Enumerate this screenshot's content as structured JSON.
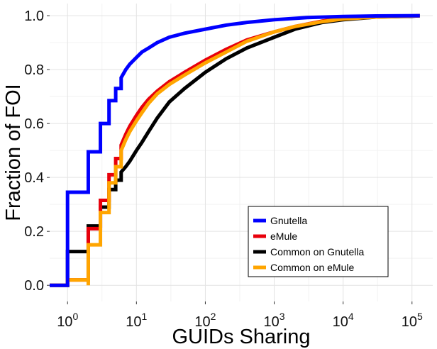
{
  "chart_data": {
    "type": "line",
    "title": "",
    "xlabel": "GUIDs Sharing",
    "ylabel": "Fraction of FOI",
    "x_scale": "log10",
    "xlim": [
      0.55,
      200000
    ],
    "ylim": [
      -0.06,
      1.045
    ],
    "grid": true,
    "legend_position": "bottom-right",
    "x_ticks": [
      {
        "value": 1,
        "base": "10",
        "exp": "0"
      },
      {
        "value": 10,
        "base": "10",
        "exp": "1"
      },
      {
        "value": 100,
        "base": "10",
        "exp": "2"
      },
      {
        "value": 1000,
        "base": "10",
        "exp": "3"
      },
      {
        "value": 10000,
        "base": "10",
        "exp": "4"
      },
      {
        "value": 100000,
        "base": "10",
        "exp": "5"
      }
    ],
    "y_ticks": [
      {
        "value": 0.0,
        "label": "0.0"
      },
      {
        "value": 0.2,
        "label": "0.2"
      },
      {
        "value": 0.4,
        "label": "0.4"
      },
      {
        "value": 0.6,
        "label": "0.6"
      },
      {
        "value": 0.8,
        "label": "0.8"
      },
      {
        "value": 1.0,
        "label": "1.0"
      }
    ],
    "series": [
      {
        "name": "Common on Gnutella",
        "color": "#000000",
        "steps": [
          [
            0.55,
            0.0
          ],
          [
            1,
            0.0
          ],
          [
            1,
            0.125
          ],
          [
            2,
            0.125
          ],
          [
            2,
            0.22
          ],
          [
            3,
            0.22
          ],
          [
            3,
            0.29
          ],
          [
            4,
            0.29
          ],
          [
            4,
            0.355
          ],
          [
            5,
            0.355
          ],
          [
            5,
            0.39
          ],
          [
            6,
            0.39
          ],
          [
            6,
            0.42
          ]
        ],
        "curve": [
          [
            6,
            0.42
          ],
          [
            7,
            0.44
          ],
          [
            8,
            0.46
          ],
          [
            10,
            0.5
          ],
          [
            12,
            0.53
          ],
          [
            15,
            0.57
          ],
          [
            20,
            0.62
          ],
          [
            30,
            0.68
          ],
          [
            50,
            0.73
          ],
          [
            100,
            0.79
          ],
          [
            200,
            0.84
          ],
          [
            400,
            0.88
          ],
          [
            1000,
            0.92
          ],
          [
            2000,
            0.95
          ],
          [
            5000,
            0.975
          ],
          [
            10000,
            0.985
          ],
          [
            30000,
            0.995
          ],
          [
            100000,
            0.998
          ],
          [
            130000,
            1.0
          ]
        ]
      },
      {
        "name": "eMule",
        "color": "#e8000b",
        "steps": [
          [
            0.55,
            0.0
          ],
          [
            1,
            0.0
          ],
          [
            1,
            0.02
          ],
          [
            2,
            0.02
          ],
          [
            2,
            0.21
          ],
          [
            3,
            0.21
          ],
          [
            3,
            0.315
          ],
          [
            4,
            0.315
          ],
          [
            4,
            0.41
          ],
          [
            5,
            0.41
          ],
          [
            5,
            0.47
          ],
          [
            6,
            0.47
          ],
          [
            6,
            0.52
          ]
        ],
        "curve": [
          [
            6,
            0.52
          ],
          [
            7,
            0.56
          ],
          [
            8,
            0.59
          ],
          [
            10,
            0.63
          ],
          [
            12,
            0.66
          ],
          [
            15,
            0.69
          ],
          [
            20,
            0.72
          ],
          [
            30,
            0.755
          ],
          [
            50,
            0.79
          ],
          [
            100,
            0.835
          ],
          [
            200,
            0.875
          ],
          [
            400,
            0.91
          ],
          [
            1000,
            0.94
          ],
          [
            2000,
            0.96
          ],
          [
            5000,
            0.98
          ],
          [
            10000,
            0.99
          ],
          [
            30000,
            0.996
          ],
          [
            100000,
            0.999
          ],
          [
            130000,
            1.0
          ]
        ]
      },
      {
        "name": "Common on eMule",
        "color": "#ffa500",
        "steps": [
          [
            0.55,
            0.0
          ],
          [
            1,
            0.0
          ],
          [
            1,
            0.02
          ],
          [
            2,
            0.02
          ],
          [
            2,
            0.0
          ],
          [
            2,
            0.02
          ],
          [
            2,
            0.15
          ],
          [
            3,
            0.15
          ],
          [
            3,
            0.27
          ],
          [
            4,
            0.27
          ],
          [
            4,
            0.38
          ],
          [
            5,
            0.38
          ],
          [
            5,
            0.44
          ],
          [
            6,
            0.44
          ],
          [
            6,
            0.5
          ]
        ],
        "curve": [
          [
            6,
            0.5
          ],
          [
            7,
            0.54
          ],
          [
            8,
            0.57
          ],
          [
            10,
            0.61
          ],
          [
            12,
            0.64
          ],
          [
            15,
            0.675
          ],
          [
            20,
            0.71
          ],
          [
            30,
            0.745
          ],
          [
            50,
            0.78
          ],
          [
            100,
            0.825
          ],
          [
            200,
            0.865
          ],
          [
            400,
            0.905
          ],
          [
            1000,
            0.94
          ],
          [
            2000,
            0.96
          ],
          [
            5000,
            0.978
          ],
          [
            10000,
            0.988
          ],
          [
            30000,
            0.995
          ],
          [
            100000,
            0.999
          ],
          [
            130000,
            1.0
          ]
        ]
      },
      {
        "name": "Gnutella",
        "color": "#0000ff",
        "steps": [
          [
            0.55,
            0.0
          ],
          [
            1,
            0.0
          ],
          [
            1,
            0.345
          ],
          [
            2,
            0.345
          ],
          [
            2,
            0.495
          ],
          [
            3,
            0.495
          ],
          [
            3,
            0.6
          ],
          [
            4,
            0.6
          ],
          [
            4,
            0.685
          ],
          [
            5,
            0.685
          ],
          [
            5,
            0.73
          ],
          [
            6,
            0.73
          ],
          [
            6,
            0.77
          ]
        ],
        "curve": [
          [
            6,
            0.77
          ],
          [
            7,
            0.8
          ],
          [
            8,
            0.82
          ],
          [
            10,
            0.845
          ],
          [
            12,
            0.865
          ],
          [
            15,
            0.88
          ],
          [
            20,
            0.9
          ],
          [
            30,
            0.92
          ],
          [
            50,
            0.935
          ],
          [
            100,
            0.95
          ],
          [
            200,
            0.965
          ],
          [
            400,
            0.975
          ],
          [
            1000,
            0.985
          ],
          [
            3000,
            0.993
          ],
          [
            10000,
            0.997
          ],
          [
            30000,
            0.999
          ],
          [
            130000,
            1.0
          ]
        ]
      }
    ],
    "legend": [
      {
        "name": "Gnutella",
        "color": "#0000ff"
      },
      {
        "name": "eMule",
        "color": "#e8000b"
      },
      {
        "name": "Common on Gnutella",
        "color": "#000000"
      },
      {
        "name": "Common on eMule",
        "color": "#ffa500"
      }
    ]
  }
}
